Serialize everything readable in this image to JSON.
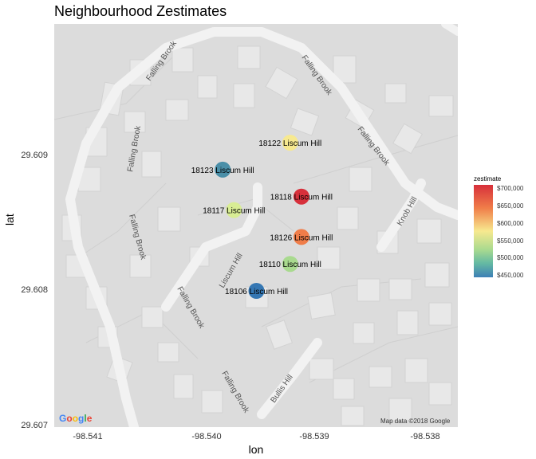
{
  "title": "Neighbourhood Zestimates",
  "axes": {
    "xlabel": "lon",
    "ylabel": "lat",
    "xticks": [
      "-98.541",
      "-98.540",
      "-98.539",
      "-98.538"
    ],
    "yticks": [
      "29.609",
      "29.608",
      "29.607"
    ]
  },
  "legend": {
    "title": "zestimate",
    "ticks": [
      "$700,000",
      "$650,000",
      "$600,000",
      "$550,000",
      "$500,000",
      "$450,000"
    ]
  },
  "map": {
    "attribution": "Map data ©2018 Google",
    "logo": "Google",
    "road_labels": [
      "Falling Brook",
      "Falling Brook",
      "Falling Brook",
      "Falling Brook",
      "Falling Brook",
      "Falling Brook",
      "Liscum Hill",
      "Bullis Hill",
      "Knob Hill",
      "Falling Brook"
    ]
  },
  "chart_data": {
    "type": "scatter",
    "title": "Neighbourhood Zestimates",
    "xlabel": "lon",
    "ylabel": "lat",
    "points": [
      {
        "label": "18122 Liscum Hill",
        "lon": -98.5392,
        "lat": 29.6091,
        "color": "#f7e98f"
      },
      {
        "label": "18123 Liscum Hill",
        "lon": -98.5398,
        "lat": 29.6089,
        "color": "#4a8fa8"
      },
      {
        "label": "18118 Liscum Hill",
        "lon": -98.5391,
        "lat": 29.6087,
        "color": "#d7303b"
      },
      {
        "label": "18117 Liscum Hill",
        "lon": -98.5397,
        "lat": 29.6086,
        "color": "#d8ed94"
      },
      {
        "label": "18126 Liscum Hill",
        "lon": -98.5391,
        "lat": 29.6084,
        "color": "#f07d49"
      },
      {
        "label": "18110 Liscum Hill",
        "lon": -98.5392,
        "lat": 29.6082,
        "color": "#a9da8f"
      },
      {
        "label": "18106 Liscum Hill",
        "lon": -98.5395,
        "lat": 29.608,
        "color": "#3577b3"
      }
    ],
    "legend": "right",
    "color_scale": {
      "title": "zestimate",
      "min": 450000,
      "max": 700000
    }
  }
}
